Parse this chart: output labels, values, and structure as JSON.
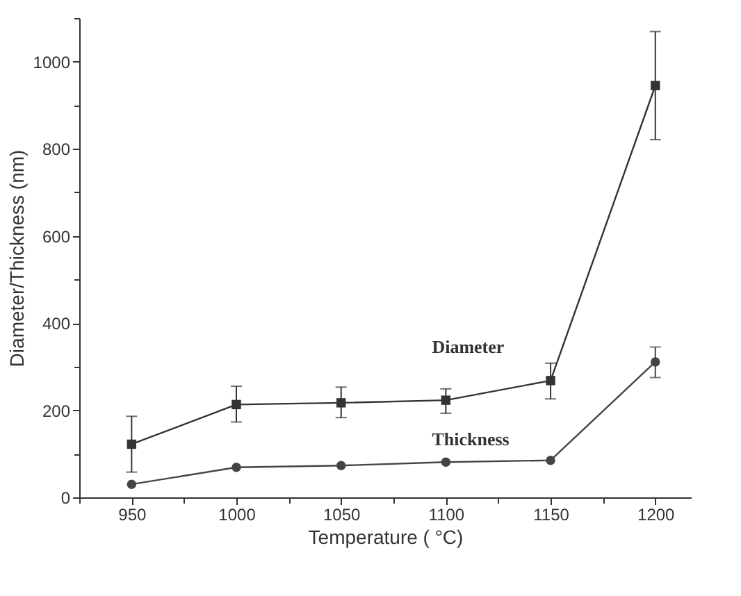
{
  "chart_data": {
    "type": "line",
    "xlabel": "Temperature ( °C)",
    "ylabel": "Diameter/Thickness (nm)",
    "x": [
      950,
      1000,
      1050,
      1100,
      1150,
      1200
    ],
    "xlim": [
      925,
      1217
    ],
    "ylim": [
      0,
      1100
    ],
    "xticks": [
      {
        "value": 925,
        "label": null
      },
      950,
      {
        "value": 975,
        "label": null
      },
      1000,
      {
        "value": 1025,
        "label": null
      },
      1050,
      {
        "value": 1075,
        "label": null
      },
      1100,
      {
        "value": 1125,
        "label": null
      },
      1150,
      {
        "value": 1175,
        "label": null
      },
      1200
    ],
    "yticks": [
      0,
      {
        "value": 100,
        "label": null
      },
      200,
      {
        "value": 300,
        "label": null
      },
      400,
      {
        "value": 500,
        "label": null
      },
      600,
      {
        "value": 700,
        "label": null
      },
      800,
      {
        "value": 900,
        "label": null
      },
      1000,
      {
        "value": 1100,
        "label": null
      }
    ],
    "grid": false,
    "line_style": "solid",
    "series": [
      {
        "name": "Diameter",
        "color": "#333333",
        "marker": "square",
        "values": [
          122,
          213,
          217,
          223,
          268,
          945
        ],
        "errors": [
          [
            58,
            186
          ],
          [
            173,
            255
          ],
          [
            183,
            253
          ],
          [
            193,
            249
          ],
          [
            226,
            308
          ],
          [
            821,
            1069
          ]
        ]
      },
      {
        "name": "Thickness",
        "color": "#444444",
        "marker": "circle",
        "values": [
          30,
          69,
          73,
          81,
          85,
          311
        ],
        "errors": [
          null,
          null,
          null,
          null,
          null,
          [
            275,
            345
          ]
        ]
      }
    ]
  }
}
